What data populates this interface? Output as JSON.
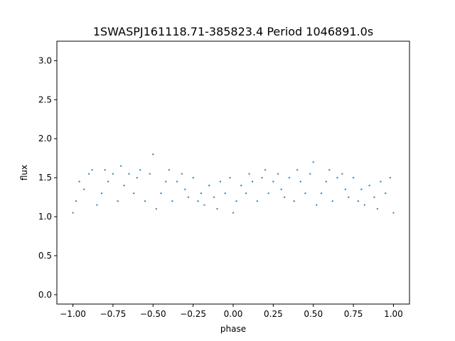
{
  "chart_data": {
    "type": "scatter",
    "title": "1SWASPJ161118.71-385823.4 Period 1046891.0s",
    "xlabel": "phase",
    "ylabel": "flux",
    "xlim": [
      -1.1,
      1.1
    ],
    "ylim": [
      -0.12,
      3.25
    ],
    "x_ticks": [
      -1.0,
      -0.75,
      -0.5,
      -0.25,
      0.0,
      0.25,
      0.5,
      0.75,
      1.0
    ],
    "x_tick_labels": [
      "−1.00",
      "−0.75",
      "−0.50",
      "−0.25",
      "0.00",
      "0.25",
      "0.50",
      "0.75",
      "1.00"
    ],
    "y_ticks": [
      0.0,
      0.5,
      1.0,
      1.5,
      2.0,
      2.5,
      3.0
    ],
    "y_tick_labels": [
      "0.0",
      "0.5",
      "1.0",
      "1.5",
      "2.0",
      "2.5",
      "3.0"
    ],
    "grid": false,
    "legend": "none",
    "marker_color": "#1f77b4",
    "series": [
      {
        "x": [
          -1.0,
          -0.98,
          -0.96,
          -0.93,
          -0.9,
          -0.88,
          -0.85,
          -0.82,
          -0.8,
          -0.78,
          -0.75,
          -0.72,
          -0.7,
          -0.68,
          -0.65,
          -0.62,
          -0.6,
          -0.58,
          -0.55,
          -0.52,
          -0.5,
          -0.48,
          -0.45,
          -0.42,
          -0.4,
          -0.38,
          -0.35,
          -0.32,
          -0.3,
          -0.28,
          -0.25,
          -0.22,
          -0.2,
          -0.18,
          -0.15,
          -0.12,
          -0.1,
          -0.08,
          -0.05,
          -0.02,
          0.0,
          0.02,
          0.05,
          0.08,
          0.1,
          0.12,
          0.15,
          0.18,
          0.2,
          0.22,
          0.25,
          0.28,
          0.3,
          0.32,
          0.35,
          0.38,
          0.4,
          0.42,
          0.45,
          0.48,
          0.5,
          0.52,
          0.55,
          0.58,
          0.6,
          0.62,
          0.65,
          0.68,
          0.7,
          0.72,
          0.75,
          0.78,
          0.8,
          0.82,
          0.85,
          0.88,
          0.9,
          0.92,
          0.95,
          0.98,
          1.0
        ],
        "y": [
          1.05,
          1.2,
          1.45,
          1.35,
          1.55,
          1.6,
          1.15,
          1.3,
          1.6,
          1.45,
          1.55,
          1.2,
          1.65,
          1.4,
          1.55,
          1.3,
          1.5,
          1.6,
          1.2,
          1.55,
          1.8,
          1.1,
          1.3,
          1.45,
          1.6,
          1.2,
          1.45,
          1.55,
          1.35,
          1.25,
          1.5,
          1.2,
          1.3,
          1.15,
          1.4,
          1.25,
          1.1,
          1.45,
          1.3,
          1.5,
          1.05,
          1.2,
          1.4,
          1.3,
          1.55,
          1.45,
          1.2,
          1.5,
          1.6,
          1.3,
          1.45,
          1.55,
          1.35,
          1.25,
          1.5,
          1.2,
          1.6,
          1.45,
          1.3,
          1.55,
          1.7,
          1.15,
          1.3,
          1.45,
          1.6,
          1.2,
          1.5,
          1.55,
          1.35,
          1.25,
          1.5,
          1.2,
          1.35,
          1.15,
          1.4,
          1.25,
          1.1,
          1.45,
          1.3,
          1.5,
          1.05
        ]
      }
    ]
  }
}
